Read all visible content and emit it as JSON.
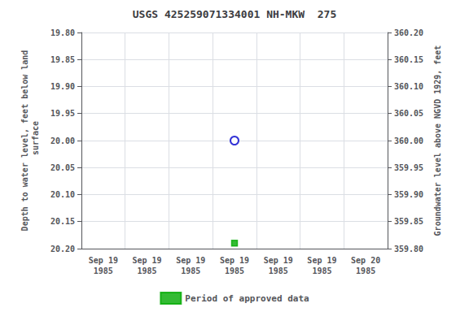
{
  "chart_data": {
    "type": "scatter",
    "title": "USGS 425259071334001 NH-MKW  275",
    "y_label": "Depth to water level, feet below land\n surface",
    "y2_label": "Groundwater level above NGVD 1929, feet",
    "categories": [
      "Sep 19\n1985",
      "Sep 19\n1985",
      "Sep 19\n1985",
      "Sep 19\n1985",
      "Sep 19\n1985",
      "Sep 19\n1985",
      "Sep 20\n1985"
    ],
    "series": [
      {
        "color": "#0000cc",
        "marker": "circle-open",
        "values": [
          null,
          null,
          null,
          20.0,
          null,
          null,
          null
        ]
      },
      {
        "name": "Period of approved data",
        "color": "#00aa00",
        "marker": "square",
        "values": [
          null,
          null,
          null,
          20.19,
          null,
          null,
          null
        ]
      }
    ],
    "ylim": [
      20.2,
      19.8
    ],
    "yticks": [
      {
        "value": 19.8,
        "label": "19.80"
      },
      19.85,
      {
        "value": 19.9,
        "label": "19.90"
      },
      19.95,
      {
        "value": 20.0,
        "label": "20.00"
      },
      20.05,
      {
        "value": 20.1,
        "label": "20.10"
      },
      20.15,
      {
        "value": 20.2,
        "label": "20.20"
      }
    ],
    "y2lim": [
      359.8,
      360.2
    ],
    "y2ticks": [
      {
        "value": 360.2,
        "label": "360.20"
      },
      360.15,
      {
        "value": 360.1,
        "label": "360.10"
      },
      360.05,
      {
        "value": 360.0,
        "label": "360.00"
      },
      359.95,
      {
        "value": 359.9,
        "label": "359.90"
      },
      359.85,
      {
        "value": 359.8,
        "label": "359.80"
      }
    ],
    "grid": true,
    "legend": "bottom"
  }
}
